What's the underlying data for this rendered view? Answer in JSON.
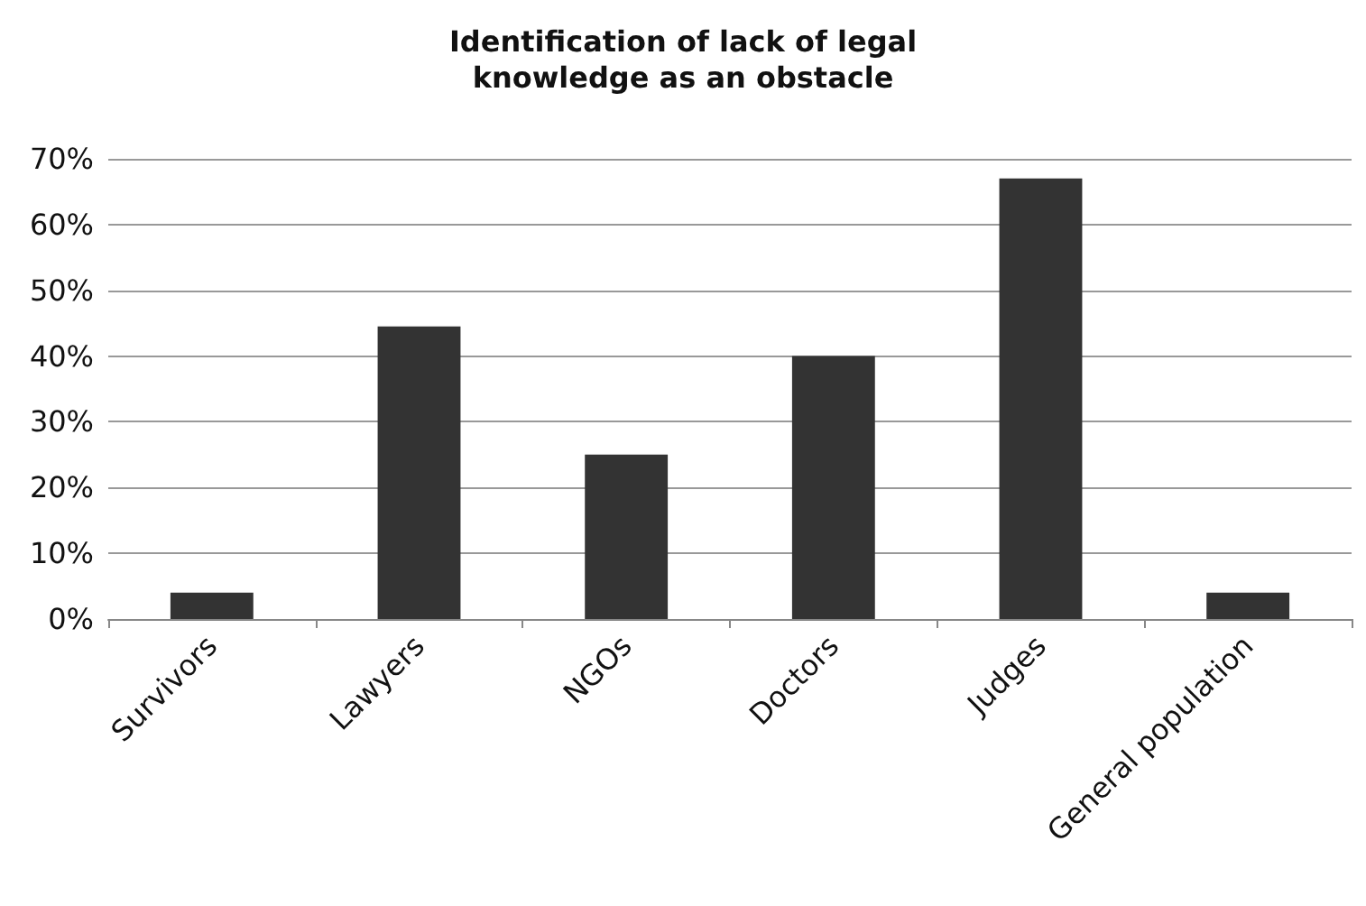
{
  "chart_data": {
    "type": "bar",
    "title": "Identification of lack of legal\nknowledge as an obstacle",
    "categories": [
      "Survivors",
      "Lawyers",
      "NGOs",
      "Doctors",
      "Judges",
      "General population"
    ],
    "values": [
      4,
      44.5,
      25,
      40,
      67,
      4
    ],
    "color": "#333333",
    "ylim": [
      0,
      70
    ],
    "yticks": [
      {
        "value": 0,
        "label": "0%"
      },
      {
        "value": 10,
        "label": "10%"
      },
      {
        "value": 20,
        "label": "20%"
      },
      {
        "value": 30,
        "label": "30%"
      },
      {
        "value": 40,
        "label": "40%"
      },
      {
        "value": 50,
        "label": "50%"
      },
      {
        "value": 60,
        "label": "60%"
      },
      {
        "value": 70,
        "label": "70%"
      }
    ],
    "grid": "y"
  }
}
